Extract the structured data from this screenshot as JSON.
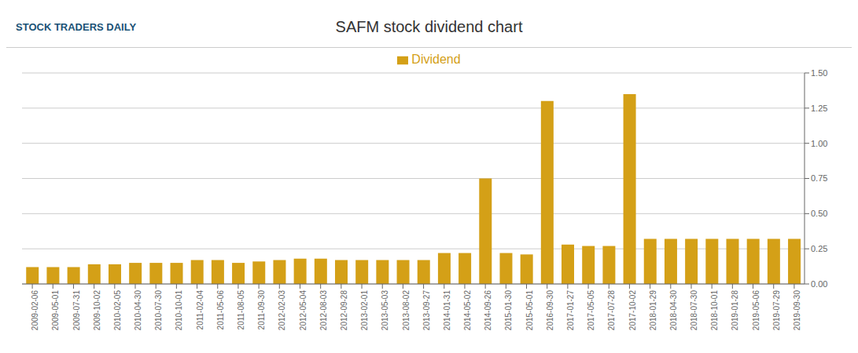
{
  "chart_data": {
    "type": "bar",
    "title": "SAFM stock dividend chart",
    "subtitle": "STOCK TRADERS DAILY",
    "categories": [
      "2009-02-06",
      "2009-05-01",
      "2009-07-31",
      "2009-10-02",
      "2010-02-05",
      "2010-04-30",
      "2010-07-30",
      "2010-10-01",
      "2011-02-04",
      "2011-05-06",
      "2011-08-05",
      "2011-09-30",
      "2012-02-03",
      "2012-05-04",
      "2012-08-03",
      "2012-09-28",
      "2013-02-01",
      "2013-05-03",
      "2013-08-02",
      "2013-09-27",
      "2014-01-31",
      "2014-05-02",
      "2014-09-26",
      "2015-01-30",
      "2015-05-01",
      "2016-09-30",
      "2017-01-27",
      "2017-05-05",
      "2017-07-28",
      "2017-10-02",
      "2018-01-29",
      "2018-04-30",
      "2018-07-30",
      "2018-10-01",
      "2019-01-28",
      "2019-05-06",
      "2019-07-29",
      "2019-09-30"
    ],
    "series": [
      {
        "name": "Dividend",
        "color": "#D4A017",
        "values": [
          0.12,
          0.12,
          0.12,
          0.14,
          0.14,
          0.15,
          0.15,
          0.15,
          0.17,
          0.17,
          0.15,
          0.16,
          0.17,
          0.18,
          0.18,
          0.17,
          0.17,
          0.17,
          0.17,
          0.17,
          0.22,
          0.22,
          0.75,
          0.22,
          0.21,
          1.3,
          0.28,
          0.27,
          0.27,
          1.35,
          0.32,
          0.32,
          0.32,
          0.32,
          0.32,
          0.32,
          0.32,
          0.32
        ]
      }
    ],
    "ylim": [
      0,
      1.5
    ],
    "yticks": [
      {
        "value": 0,
        "label": "0.00"
      },
      0.25,
      {
        "value": 0.5,
        "label": "0.50"
      },
      0.75,
      {
        "value": 1.0,
        "label": "1.00"
      },
      1.25,
      {
        "value": 1.5,
        "label": "1.50"
      }
    ],
    "grid": true,
    "legend": "top"
  }
}
